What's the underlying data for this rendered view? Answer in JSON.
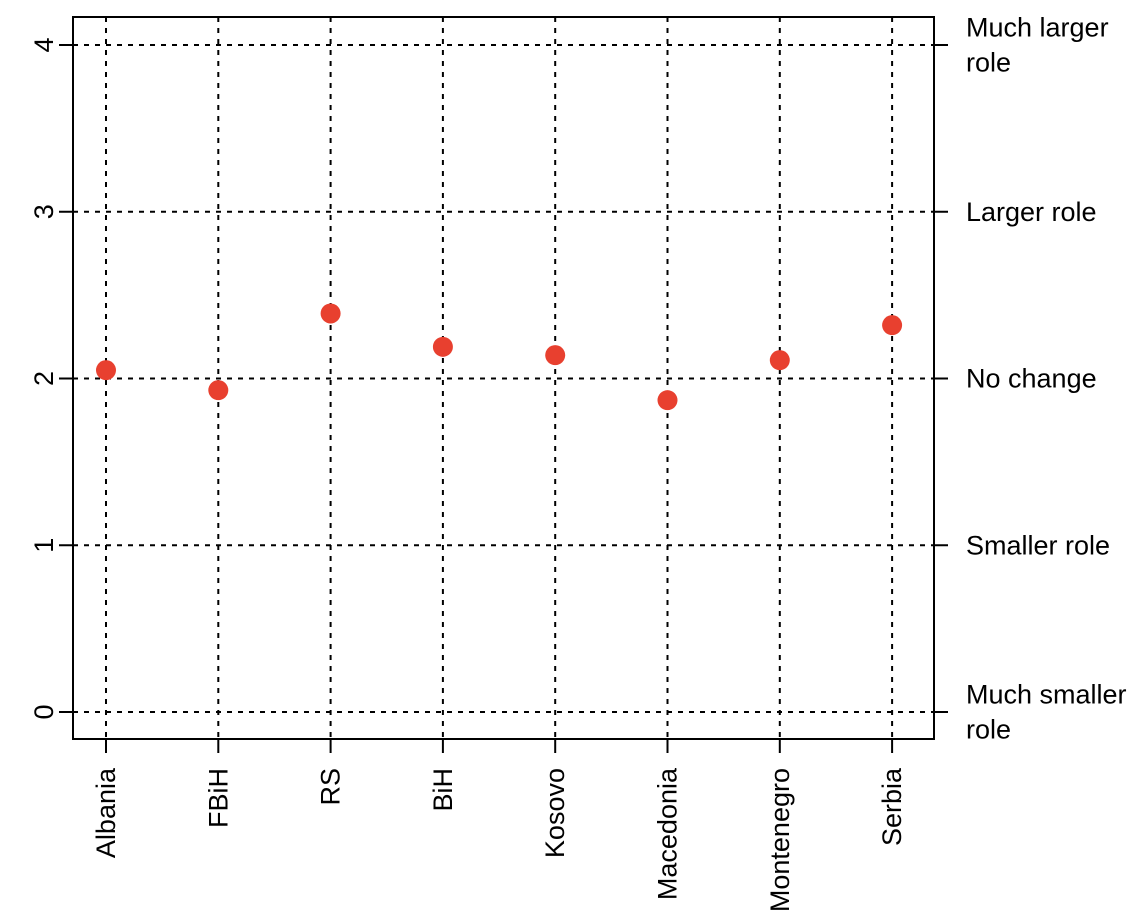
{
  "chart_data": {
    "type": "scatter",
    "categories": [
      "Albania",
      "FBiH",
      "RS",
      "BiH",
      "Kosovo",
      "Macedonia",
      "Montenegro",
      "Serbia"
    ],
    "values": [
      2.05,
      1.93,
      2.39,
      2.19,
      2.14,
      1.87,
      2.11,
      2.32
    ],
    "title": "",
    "xlabel": "",
    "ylabel": "",
    "ylim": [
      -0.16,
      4.16
    ],
    "yticks": [
      0,
      1,
      2,
      3,
      4
    ],
    "ytick_labels": [
      "0",
      "1",
      "2",
      "3",
      "4"
    ],
    "right_axis": {
      "ticks": [
        0,
        1,
        2,
        3,
        4
      ],
      "labels": [
        [
          "Much smaller",
          "role"
        ],
        [
          "Smaller role"
        ],
        [
          "No change"
        ],
        [
          "Larger role"
        ],
        [
          "Much larger",
          "role"
        ]
      ]
    },
    "grid": true,
    "point_color": "#e8402f"
  }
}
